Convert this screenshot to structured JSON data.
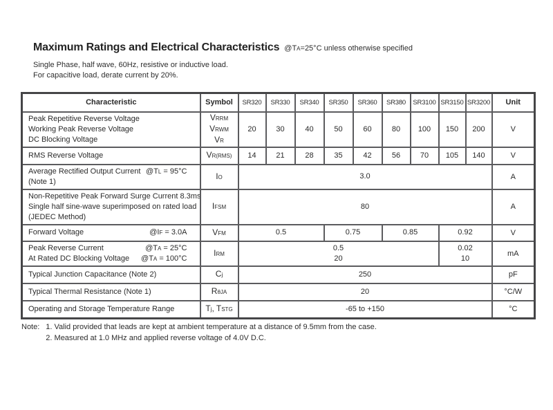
{
  "page": {
    "title": "Maximum Ratings and Electrical Characteristics",
    "title_condition": [
      {
        "t": "@T"
      },
      {
        "t": "A",
        "sub": true
      },
      {
        "t": "=25°C unless otherwise specified"
      }
    ],
    "subtitle_line1": "Single Phase, half wave, 60Hz, resistive or inductive load.",
    "subtitle_line2": "For capacitive load, derate current by 20%."
  },
  "table": {
    "header": [
      "Characteristic",
      "Symbol",
      "SR320",
      "SR330",
      "SR340",
      "SR350",
      "SR360",
      "SR380",
      "SR3100",
      "SR3150",
      "SR3200",
      "Unit"
    ],
    "rows": [
      {
        "name": "reverse-voltage",
        "characteristic": [
          {
            "left": [
              {
                "t": "Peak Repetitive Reverse Voltage"
              }
            ]
          },
          {
            "left": [
              {
                "t": "Working Peak Reverse Voltage"
              }
            ]
          },
          {
            "left": [
              {
                "t": "DC Blocking Voltage"
              }
            ]
          }
        ],
        "symbol": [
          [
            {
              "t": "V"
            },
            {
              "t": "RRM",
              "sub": true
            }
          ],
          [
            {
              "t": "V"
            },
            {
              "t": "RWM",
              "sub": true
            }
          ],
          [
            {
              "t": "V"
            },
            {
              "t": "R",
              "sub": true
            }
          ]
        ],
        "values": [
          {
            "lines": [
              "20"
            ],
            "span": 1
          },
          {
            "lines": [
              "30"
            ],
            "span": 1
          },
          {
            "lines": [
              "40"
            ],
            "span": 1
          },
          {
            "lines": [
              "50"
            ],
            "span": 1
          },
          {
            "lines": [
              "60"
            ],
            "span": 1
          },
          {
            "lines": [
              "80"
            ],
            "span": 1
          },
          {
            "lines": [
              "100"
            ],
            "span": 1
          },
          {
            "lines": [
              "150"
            ],
            "span": 1
          },
          {
            "lines": [
              "200"
            ],
            "span": 1
          }
        ],
        "unit": "V"
      },
      {
        "name": "rms-reverse-voltage",
        "characteristic": [
          {
            "left": [
              {
                "t": "RMS Reverse Voltage"
              }
            ]
          }
        ],
        "symbol": [
          [
            {
              "t": "V"
            },
            {
              "t": "R(RMS)",
              "sub": true
            }
          ]
        ],
        "values": [
          {
            "lines": [
              "14"
            ],
            "span": 1
          },
          {
            "lines": [
              "21"
            ],
            "span": 1
          },
          {
            "lines": [
              "28"
            ],
            "span": 1
          },
          {
            "lines": [
              "35"
            ],
            "span": 1
          },
          {
            "lines": [
              "42"
            ],
            "span": 1
          },
          {
            "lines": [
              "56"
            ],
            "span": 1
          },
          {
            "lines": [
              "70"
            ],
            "span": 1
          },
          {
            "lines": [
              "105"
            ],
            "span": 1
          },
          {
            "lines": [
              "140"
            ],
            "span": 1
          }
        ],
        "unit": "V"
      },
      {
        "name": "average-rectified-output-current",
        "characteristic": [
          {
            "left": [
              {
                "t": "Average Rectified Output Current"
              }
            ],
            "right": [
              {
                "t": "@T"
              },
              {
                "t": "L",
                "sub": true
              },
              {
                "t": " = 95°C"
              }
            ]
          },
          {
            "left": [
              {
                "t": "(Note 1)"
              }
            ]
          }
        ],
        "symbol": [
          [
            {
              "t": "I"
            },
            {
              "t": "O",
              "sub": true
            }
          ]
        ],
        "values": [
          {
            "lines": [
              "3.0"
            ],
            "span": 9
          }
        ],
        "unit": "A"
      },
      {
        "name": "peak-forward-surge-current",
        "characteristic": [
          {
            "left": [
              {
                "t": "Non-Repetitive Peak Forward Surge Current 8.3ms"
              }
            ]
          },
          {
            "left": [
              {
                "t": "Single half sine-wave superimposed on rated load"
              }
            ]
          },
          {
            "left": [
              {
                "t": "(JEDEC Method)"
              }
            ]
          }
        ],
        "symbol": [
          [
            {
              "t": "I"
            },
            {
              "t": "FSM",
              "sub": true
            }
          ]
        ],
        "values": [
          {
            "lines": [
              "80"
            ],
            "span": 9
          }
        ],
        "unit": "A"
      },
      {
        "name": "forward-voltage",
        "characteristic": [
          {
            "left": [
              {
                "t": "Forward Voltage"
              }
            ],
            "right": [
              {
                "t": "@I"
              },
              {
                "t": "F",
                "sub": true
              },
              {
                "t": " = 3.0A"
              }
            ]
          }
        ],
        "symbol": [
          [
            {
              "t": "V"
            },
            {
              "t": "FM",
              "sub": true
            }
          ]
        ],
        "values": [
          {
            "lines": [
              "0.5"
            ],
            "span": 3
          },
          {
            "lines": [
              "0.75"
            ],
            "span": 2
          },
          {
            "lines": [
              "0.85"
            ],
            "span": 2
          },
          {
            "lines": [
              "0.92"
            ],
            "span": 2
          }
        ],
        "unit": "V"
      },
      {
        "name": "peak-reverse-current",
        "characteristic": [
          {
            "left": [
              {
                "t": "Peak Reverse Current"
              }
            ],
            "right": [
              {
                "t": "@T"
              },
              {
                "t": "A",
                "sub": true
              },
              {
                "t": " = 25°C"
              }
            ]
          },
          {
            "left": [
              {
                "t": "At Rated DC Blocking Voltage"
              }
            ],
            "right": [
              {
                "t": "@T"
              },
              {
                "t": "A",
                "sub": true
              },
              {
                "t": " = 100°C"
              }
            ]
          }
        ],
        "symbol": [
          [
            {
              "t": "I"
            },
            {
              "t": "RM",
              "sub": true
            }
          ]
        ],
        "values": [
          {
            "lines": [
              "0.5",
              "20"
            ],
            "span": 7
          },
          {
            "lines": [
              "0.02",
              "10"
            ],
            "span": 2
          }
        ],
        "unit": "mA"
      },
      {
        "name": "junction-capacitance",
        "characteristic": [
          {
            "left": [
              {
                "t": "Typical Junction Capacitance (Note 2)"
              }
            ]
          }
        ],
        "symbol": [
          [
            {
              "t": "C"
            },
            {
              "t": "j",
              "sub": true
            }
          ]
        ],
        "values": [
          {
            "lines": [
              "250"
            ],
            "span": 9
          }
        ],
        "unit": "pF"
      },
      {
        "name": "thermal-resistance",
        "characteristic": [
          {
            "left": [
              {
                "t": "Typical Thermal Resistance (Note 1)"
              }
            ]
          }
        ],
        "symbol": [
          [
            {
              "t": "R"
            },
            {
              "t": "θJA",
              "sub": true
            }
          ]
        ],
        "values": [
          {
            "lines": [
              "20"
            ],
            "span": 9
          }
        ],
        "unit": "°C/W"
      },
      {
        "name": "operating-temperature-range",
        "characteristic": [
          {
            "left": [
              {
                "t": "Operating and Storage Temperature Range"
              }
            ]
          }
        ],
        "symbol": [
          [
            {
              "t": "T"
            },
            {
              "t": "j",
              "sub": true
            },
            {
              "t": ", T"
            },
            {
              "t": "STG",
              "sub": true
            }
          ]
        ],
        "values": [
          {
            "lines": [
              "-65 to +150"
            ],
            "span": 9
          }
        ],
        "unit": "°C"
      }
    ]
  },
  "notes": {
    "label": "Note:",
    "items": [
      "1. Valid provided that leads are kept at ambient temperature at a distance of 9.5mm from the case.",
      "2. Measured at 1.0 MHz and applied reverse voltage of 4.0V D.C."
    ]
  }
}
